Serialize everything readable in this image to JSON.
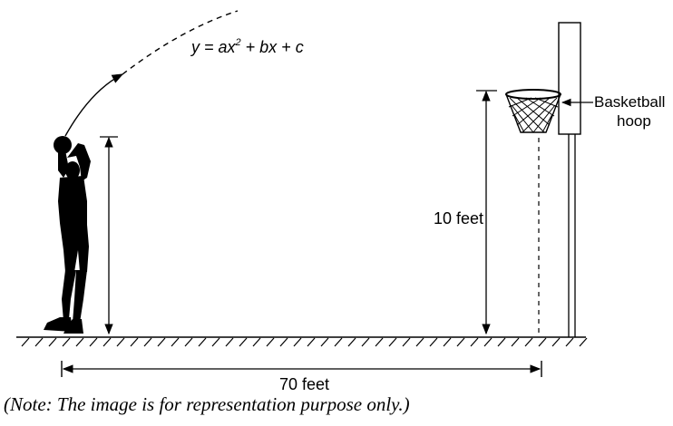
{
  "diagram": {
    "equation": {
      "prefix": "y = ax",
      "exponent": "2",
      "suffix": " + bx + c"
    },
    "hoop_label": {
      "line1": "Basketball",
      "line2": "hoop"
    },
    "height_label": "10 feet",
    "distance_label": "70 feet",
    "note": "(Note: The image is for representation purpose only.)"
  }
}
